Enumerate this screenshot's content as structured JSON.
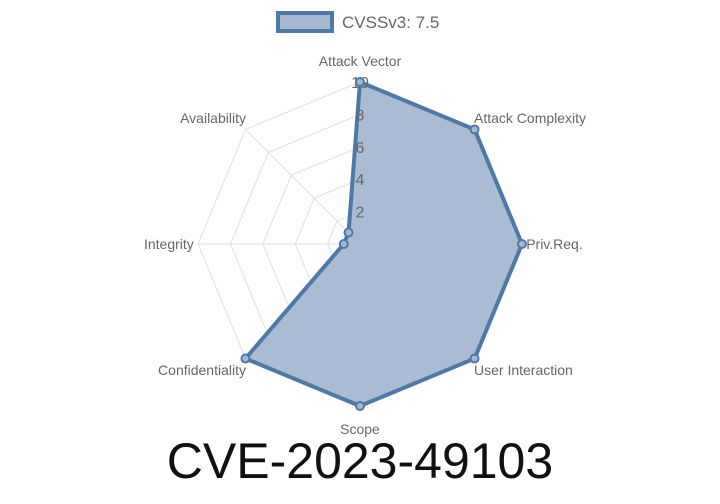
{
  "chart_data": {
    "type": "radar",
    "categories": [
      "Attack Vector",
      "Attack Complexity",
      "Priv.Req.",
      "User Interaction",
      "Scope",
      "Confidentiality",
      "Integrity",
      "Availability"
    ],
    "series": [
      {
        "name": "CVSSv3: 7.5",
        "values": [
          10,
          10,
          10,
          10,
          10,
          10,
          1,
          1
        ]
      }
    ],
    "rlim": [
      0,
      10
    ],
    "ticks": [
      "2",
      "4",
      "6",
      "8",
      "10"
    ],
    "grid": true,
    "legend": "top",
    "colors": {
      "line": "#4e79a7",
      "fill": "#a5b8d1",
      "grid": "#e0e0e0",
      "label": "#666666"
    }
  },
  "title": "CVE-2023-49103"
}
